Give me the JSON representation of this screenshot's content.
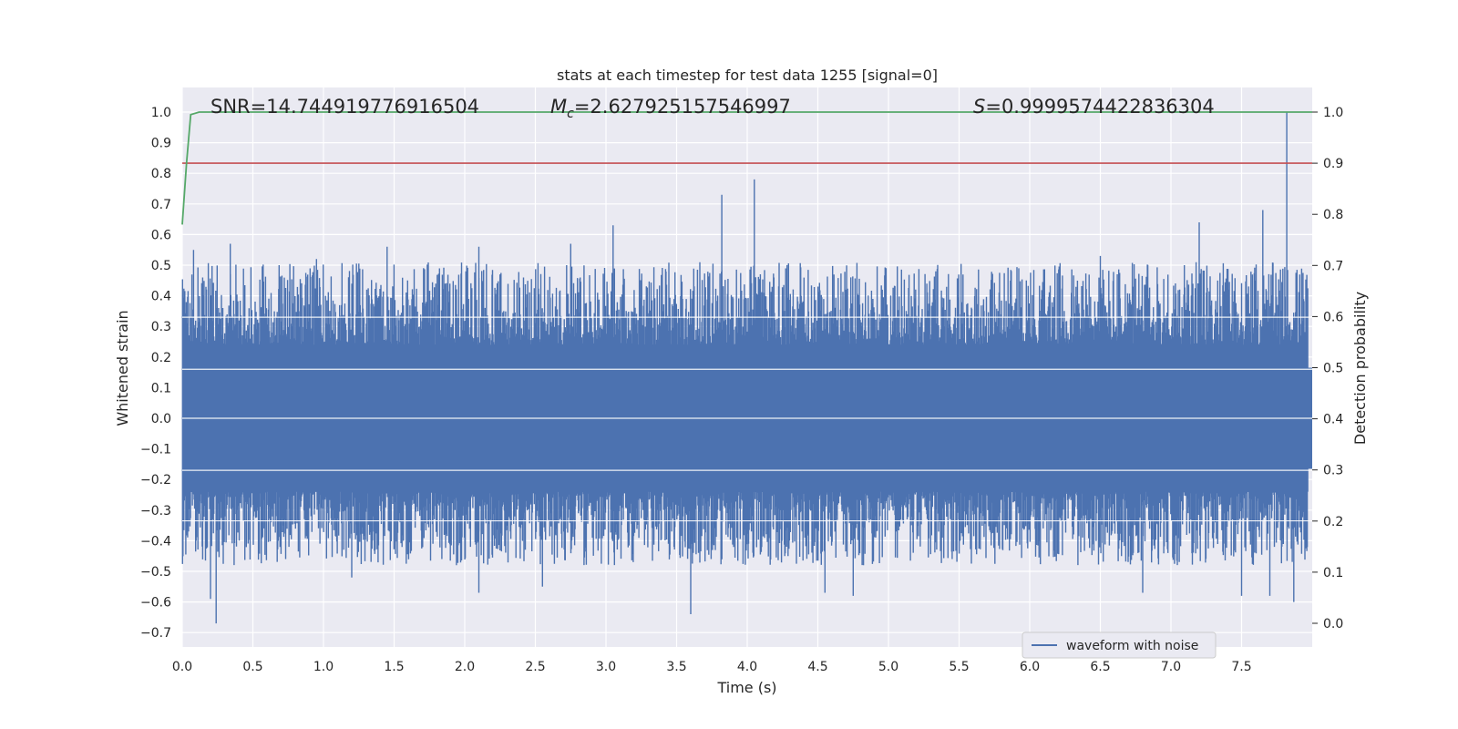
{
  "chart_data": {
    "type": "line",
    "title": "stats at each timestep for test data 1255 [signal=0]",
    "xlabel": "Time (s)",
    "ylabel": "Whitened strain",
    "y2label": "Detection probability",
    "xlim": [
      0.0,
      8.0
    ],
    "ylim": [
      -0.75,
      1.08
    ],
    "y2lim": [
      -0.05,
      1.04
    ],
    "xticks": [
      "0.0",
      "0.5",
      "1.0",
      "1.5",
      "2.0",
      "2.5",
      "3.0",
      "3.5",
      "4.0",
      "4.5",
      "5.0",
      "5.5",
      "6.0",
      "6.5",
      "7.0",
      "7.5"
    ],
    "yticks": [
      "1.0",
      "0.9",
      "0.8",
      "0.7",
      "0.6",
      "0.5",
      "0.4",
      "0.3",
      "0.2",
      "0.1",
      "0.0",
      "−0.1",
      "−0.2",
      "−0.3",
      "−0.4",
      "−0.5",
      "−0.6",
      "−0.7"
    ],
    "y2ticks": [
      "1.0",
      "0.9",
      "0.8",
      "0.7",
      "0.6",
      "0.5",
      "0.4",
      "0.3",
      "0.2",
      "0.1",
      "0.0"
    ],
    "annotations": {
      "snr": "SNR=14.744919776916504",
      "mc_symbol": "M",
      "mc_sub": "c",
      "mc_value": "=2.627925157546997",
      "s_symbol": "S",
      "s_value": "=0.9999574422836304"
    },
    "threshold": {
      "axis": "right",
      "value": 0.9,
      "color": "#c44e52"
    },
    "series": [
      {
        "name": "waveform with noise",
        "axis": "left",
        "color": "#4c72b0",
        "peaks": [
          {
            "t": 0.08,
            "v": 0.55
          },
          {
            "t": 0.34,
            "v": 0.57
          },
          {
            "t": 0.95,
            "v": 0.52
          },
          {
            "t": 1.45,
            "v": 0.56
          },
          {
            "t": 2.1,
            "v": 0.56
          },
          {
            "t": 2.75,
            "v": 0.57
          },
          {
            "t": 3.05,
            "v": 0.63
          },
          {
            "t": 3.82,
            "v": 0.73
          },
          {
            "t": 4.05,
            "v": 0.78
          },
          {
            "t": 6.5,
            "v": 0.53
          },
          {
            "t": 7.2,
            "v": 0.64
          },
          {
            "t": 7.65,
            "v": 0.68
          },
          {
            "t": 7.82,
            "v": 1.0
          }
        ],
        "troughs": [
          {
            "t": 0.24,
            "v": -0.67
          },
          {
            "t": 0.2,
            "v": -0.59
          },
          {
            "t": 1.2,
            "v": -0.52
          },
          {
            "t": 2.1,
            "v": -0.57
          },
          {
            "t": 2.55,
            "v": -0.55
          },
          {
            "t": 3.6,
            "v": -0.64
          },
          {
            "t": 4.55,
            "v": -0.57
          },
          {
            "t": 4.75,
            "v": -0.58
          },
          {
            "t": 6.8,
            "v": -0.57
          },
          {
            "t": 7.5,
            "v": -0.58
          },
          {
            "t": 7.7,
            "v": -0.58
          },
          {
            "t": 7.87,
            "v": -0.6
          }
        ]
      },
      {
        "name": "detection probability",
        "axis": "right",
        "color": "#55a868",
        "x": [
          0.0,
          0.03,
          0.06,
          0.12,
          8.0
        ],
        "values": [
          0.78,
          0.9,
          0.995,
          1.0,
          1.0
        ]
      }
    ],
    "legend": {
      "position": "lower-right",
      "entries": [
        "waveform with noise"
      ]
    }
  }
}
